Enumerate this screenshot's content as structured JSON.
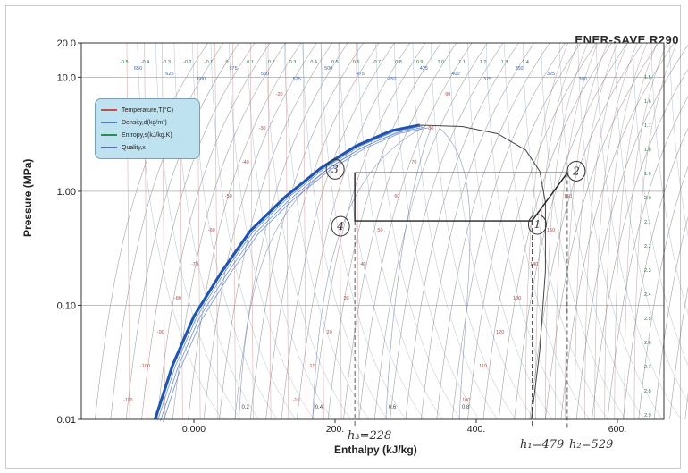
{
  "chart_data": {
    "type": "line",
    "title": "ENER-SAVE R290",
    "xlabel": "Enthalpy (kJ/kg)",
    "ylabel": "Pressure (MPa)",
    "x_ticks": [
      "0.000",
      "200.",
      "400.",
      "600."
    ],
    "y_ticks": [
      "20.0",
      "10.0",
      "1.00",
      "0.10",
      "0.01"
    ],
    "yscale": "log",
    "xlim": [
      -100,
      660
    ],
    "ylim": [
      0.01,
      20
    ],
    "legend": {
      "placement": "top-left",
      "entries": [
        {
          "label": "Temperature,T(°C)",
          "color": "#c0504d"
        },
        {
          "label": "Density,d(kg/m³)",
          "color": "#4b7fb8"
        },
        {
          "label": "Entropy,s(kJ/kg.K)",
          "color": "#2e8b57"
        },
        {
          "label": "Quality,x",
          "color": "#5a6fb0"
        }
      ]
    },
    "saturation_dome": {
      "liquid": [
        [
          -55,
          0.01
        ],
        [
          -30,
          0.03
        ],
        [
          0,
          0.08
        ],
        [
          40,
          0.2
        ],
        [
          80,
          0.45
        ],
        [
          130,
          0.9
        ],
        [
          180,
          1.6
        ],
        [
          230,
          2.5
        ],
        [
          280,
          3.4
        ],
        [
          320,
          3.8
        ]
      ],
      "vapor": [
        [
          320,
          3.8
        ],
        [
          380,
          3.7
        ],
        [
          430,
          3.2
        ],
        [
          470,
          2.3
        ],
        [
          490,
          1.5
        ],
        [
          498,
          0.8
        ],
        [
          498,
          0.2
        ],
        [
          490,
          0.04
        ],
        [
          478,
          0.01
        ]
      ]
    },
    "cycle": {
      "points": [
        {
          "label": "1",
          "h": 479,
          "p": 0.55
        },
        {
          "label": "2",
          "h": 529,
          "p": 1.45
        },
        {
          "label": "3",
          "h": 228,
          "p": 1.45
        },
        {
          "label": "4",
          "h": 228,
          "p": 0.55
        }
      ]
    },
    "tick_label_samples": {
      "temperature": [
        "-110",
        "-100",
        "-90",
        "-80",
        "-70",
        "-60",
        "-50",
        "-40",
        "-30",
        "-20",
        "-10",
        "10",
        "20",
        "30",
        "40",
        "50",
        "60",
        "70",
        "80",
        "90",
        "100",
        "110",
        "120",
        "130",
        "140",
        "150",
        "160"
      ],
      "density": [
        "650",
        "625",
        "600",
        "575",
        "550",
        "525",
        "500",
        "475",
        "450",
        "425",
        "400",
        "375",
        "350",
        "325",
        "300"
      ],
      "entropy": [
        "-0.5",
        "-0.4",
        "-0.3",
        "-0.2",
        "-0.1",
        "0",
        "0.1",
        "0.2",
        "0.3",
        "0.4",
        "0.5",
        "0.6",
        "0.7",
        "0.8",
        "0.9",
        "1.0",
        "1.1",
        "1.2",
        "1.3",
        "1.4",
        "1.5",
        "1.6",
        "1.7",
        "1.8",
        "1.9",
        "2.0",
        "2.1",
        "2.2",
        "2.3",
        "2.4",
        "2.5",
        "2.6",
        "2.7",
        "2.8",
        "2.9"
      ],
      "quality": [
        "0.2",
        "0.4",
        "0.6",
        "0.8"
      ]
    }
  },
  "annotations": {
    "h3": "h₃=228",
    "h1": "h₁=479",
    "h2": "h₂=529"
  }
}
